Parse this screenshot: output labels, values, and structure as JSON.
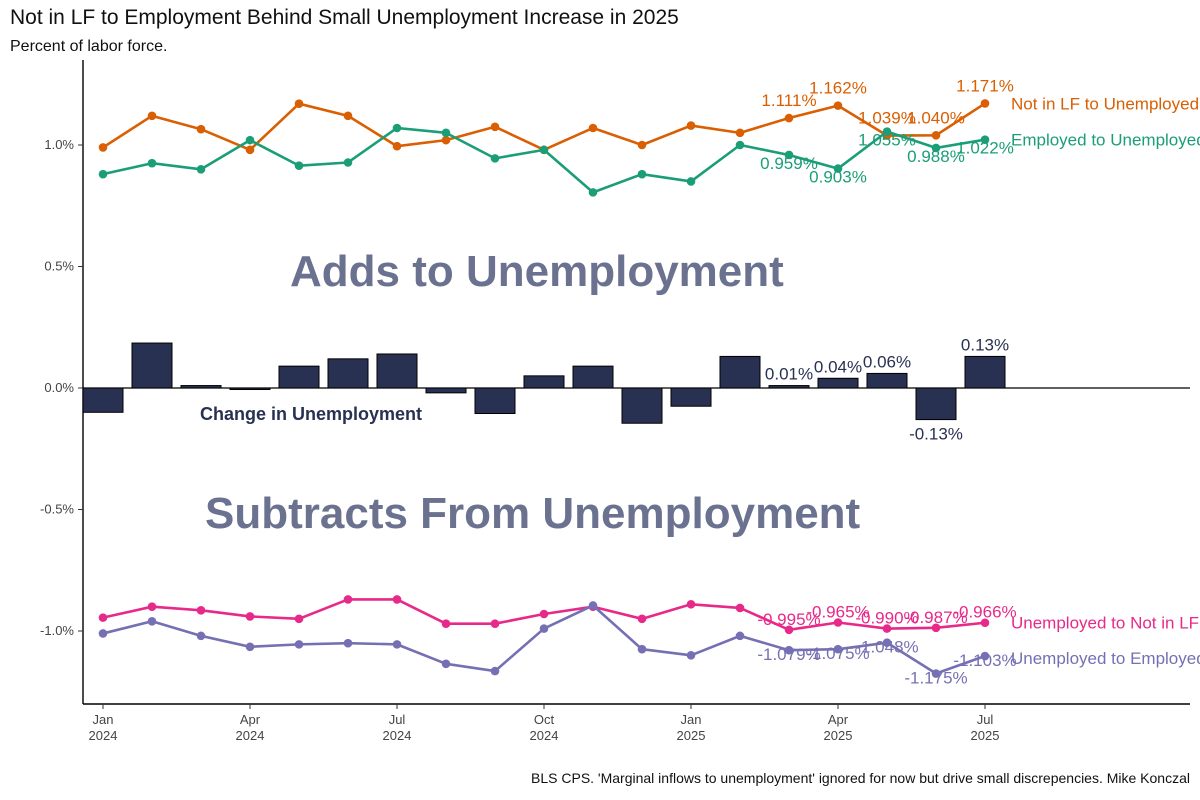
{
  "title": "Not in LF to Employment Behind Small Unemployment Increase in 2025",
  "subtitle": "Percent of labor force.",
  "caption": "BLS CPS. 'Marginal inflows to unemployment' ignored for now but drive small discrepencies. Mike Konczal",
  "colors": {
    "orange": "#d95f02",
    "green": "#1b9e77",
    "pink": "#e7298a",
    "purple": "#7570b3",
    "bar": "#283152",
    "annotation": "#6b7290"
  },
  "chart_data": {
    "type": "line",
    "x": [
      "2024-01",
      "2024-02",
      "2024-03",
      "2024-04",
      "2024-05",
      "2024-06",
      "2024-07",
      "2024-08",
      "2024-09",
      "2024-10",
      "2024-11",
      "2024-12",
      "2025-01",
      "2025-02",
      "2025-03",
      "2025-04",
      "2025-05",
      "2025-06",
      "2025-07"
    ],
    "x_ticks": [
      {
        "x": "2024-01",
        "label": [
          "Jan",
          "2024"
        ]
      },
      {
        "x": "2024-04",
        "label": [
          "Apr",
          "2024"
        ]
      },
      {
        "x": "2024-07",
        "label": [
          "Jul",
          "2024"
        ]
      },
      {
        "x": "2024-10",
        "label": [
          "Oct",
          "2024"
        ]
      },
      {
        "x": "2025-01",
        "label": [
          "Jan",
          "2025"
        ]
      },
      {
        "x": "2025-04",
        "label": [
          "Apr",
          "2025"
        ]
      },
      {
        "x": "2025-07",
        "label": [
          "Jul",
          "2025"
        ]
      }
    ],
    "y_ticks": [
      {
        "value": 1.0,
        "label": "1.0%"
      },
      {
        "value": 0.5,
        "label": "0.5%"
      },
      {
        "value": 0.0,
        "label": "0.0%"
      },
      {
        "value": -0.5,
        "label": "-0.5%"
      },
      {
        "value": -1.0,
        "label": "-1.0%"
      }
    ],
    "ylim": [
      -1.27,
      1.25
    ],
    "series": [
      {
        "name": "Not in LF to Unemployed",
        "color": "#d95f02",
        "values": [
          0.99,
          1.12,
          1.065,
          0.98,
          1.17,
          1.12,
          0.995,
          1.02,
          1.075,
          0.98,
          1.07,
          1.0,
          1.08,
          1.05,
          1.111,
          1.162,
          1.039,
          1.04,
          1.171
        ],
        "labels": [
          null,
          null,
          null,
          null,
          null,
          null,
          null,
          null,
          null,
          null,
          null,
          null,
          null,
          null,
          "1.111%",
          "1.162%",
          "1.039%",
          "1.040%",
          "1.171%"
        ]
      },
      {
        "name": "Employed to Unemployed",
        "color": "#1b9e77",
        "values": [
          0.88,
          0.925,
          0.9,
          1.02,
          0.915,
          0.928,
          1.07,
          1.05,
          0.945,
          0.98,
          0.805,
          0.88,
          0.85,
          1.0,
          0.959,
          0.903,
          1.055,
          0.988,
          1.022
        ],
        "labels": [
          null,
          null,
          null,
          null,
          null,
          null,
          null,
          null,
          null,
          null,
          null,
          null,
          null,
          null,
          "0.959%",
          "0.903%",
          "1.055%",
          "0.988%",
          "1.022%"
        ]
      },
      {
        "name": "Unemployed to Not in LF",
        "color": "#e7298a",
        "values": [
          -0.945,
          -0.9,
          -0.915,
          -0.94,
          -0.95,
          -0.87,
          -0.87,
          -0.97,
          -0.97,
          -0.93,
          -0.9,
          -0.95,
          -0.89,
          -0.905,
          -0.995,
          -0.965,
          -0.99,
          -0.987,
          -0.966
        ],
        "labels": [
          null,
          null,
          null,
          null,
          null,
          null,
          null,
          null,
          null,
          null,
          null,
          null,
          null,
          null,
          "-0.995%",
          "-0.965%",
          "-0.990%",
          "-0.987%",
          "-0.966%"
        ]
      },
      {
        "name": "Unemployed to Employed",
        "color": "#7570b3",
        "values": [
          -1.01,
          -0.96,
          -1.02,
          -1.065,
          -1.055,
          -1.05,
          -1.055,
          -1.135,
          -1.165,
          -0.99,
          -0.895,
          -1.075,
          -1.1,
          -1.02,
          -1.079,
          -1.075,
          -1.048,
          -1.175,
          -1.103
        ],
        "labels": [
          null,
          null,
          null,
          null,
          null,
          null,
          null,
          null,
          null,
          null,
          null,
          null,
          null,
          null,
          "-1.079%",
          "-1.075%",
          "-1.048%",
          "-1.175%",
          "-1.103%"
        ]
      }
    ],
    "bars": {
      "name": "Change in Unemployment",
      "color": "#283152",
      "values": [
        -0.1,
        0.185,
        0.01,
        -0.005,
        0.09,
        0.12,
        0.14,
        -0.02,
        -0.105,
        0.05,
        0.09,
        -0.145,
        -0.075,
        0.13,
        0.01,
        0.04,
        0.06,
        -0.13,
        0.13
      ],
      "labels": [
        null,
        null,
        null,
        null,
        null,
        null,
        null,
        null,
        null,
        null,
        null,
        null,
        null,
        null,
        "0.01%",
        "0.04%",
        "0.06%",
        "-0.13%",
        "0.13%"
      ]
    },
    "end_labels": [
      {
        "series": "Not in LF to Unemployed",
        "text": "Not in LF to Unemployed"
      },
      {
        "series": "Employed to Unemployed",
        "text": "Employed to Unemployed"
      },
      {
        "series": "Unemployed to Not in LF",
        "text": "Unemployed to Not in LF"
      },
      {
        "series": "Unemployed to Employed",
        "text": "Unemployed to Employed"
      }
    ],
    "annotations": {
      "adds": "Adds to Unemployment",
      "subtracts": "Subtracts From Unemployment",
      "bar_label": "Change in Unemployment"
    },
    "grid": false,
    "legend": "none"
  }
}
